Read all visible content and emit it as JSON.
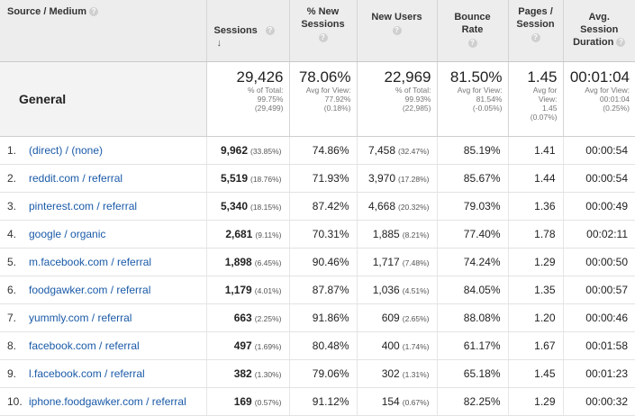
{
  "headers": {
    "source": "Source / Medium",
    "sessions": "Sessions",
    "new_sessions": "% New Sessions",
    "new_users": "New Users",
    "bounce_rate": "Bounce Rate",
    "pages_session": "Pages / Session",
    "avg_duration": "Avg. Session Duration",
    "help_glyph": "?",
    "sort_arrow": "↓"
  },
  "summary": {
    "label": "General",
    "sessions": {
      "value": "29,426",
      "l1": "% of Total:",
      "l2": "99.75%",
      "l3": "(29,499)"
    },
    "new_sessions": {
      "value": "78.06%",
      "l1": "Avg for View:",
      "l2": "77.92%",
      "l3": "(0.18%)"
    },
    "new_users": {
      "value": "22,969",
      "l1": "% of Total:",
      "l2": "99.93%",
      "l3": "(22,985)"
    },
    "bounce_rate": {
      "value": "81.50%",
      "l1": "Avg for View:",
      "l2": "81.54%",
      "l3": "(-0.05%)"
    },
    "pages_session": {
      "value": "1.45",
      "l1": "Avg for",
      "l2": "View:",
      "l3": "1.45",
      "l4": "(0.07%)"
    },
    "avg_duration": {
      "value": "00:01:04",
      "l1": "Avg for View:",
      "l2": "00:01:04",
      "l3": "(0.25%)"
    }
  },
  "rows": [
    {
      "idx": "1.",
      "source": "(direct) / (none)",
      "sessions": "9,962",
      "sessions_pct": "(33.85%)",
      "new_sessions": "74.86%",
      "new_users": "7,458",
      "new_users_pct": "(32.47%)",
      "bounce": "85.19%",
      "pages": "1.41",
      "duration": "00:00:54"
    },
    {
      "idx": "2.",
      "source": "reddit.com / referral",
      "sessions": "5,519",
      "sessions_pct": "(18.76%)",
      "new_sessions": "71.93%",
      "new_users": "3,970",
      "new_users_pct": "(17.28%)",
      "bounce": "85.67%",
      "pages": "1.44",
      "duration": "00:00:54"
    },
    {
      "idx": "3.",
      "source": "pinterest.com / referral",
      "sessions": "5,340",
      "sessions_pct": "(18.15%)",
      "new_sessions": "87.42%",
      "new_users": "4,668",
      "new_users_pct": "(20.32%)",
      "bounce": "79.03%",
      "pages": "1.36",
      "duration": "00:00:49"
    },
    {
      "idx": "4.",
      "source": "google / organic",
      "sessions": "2,681",
      "sessions_pct": "(9.11%)",
      "new_sessions": "70.31%",
      "new_users": "1,885",
      "new_users_pct": "(8.21%)",
      "bounce": "77.40%",
      "pages": "1.78",
      "duration": "00:02:11"
    },
    {
      "idx": "5.",
      "source": "m.facebook.com / referral",
      "sessions": "1,898",
      "sessions_pct": "(6.45%)",
      "new_sessions": "90.46%",
      "new_users": "1,717",
      "new_users_pct": "(7.48%)",
      "bounce": "74.24%",
      "pages": "1.29",
      "duration": "00:00:50"
    },
    {
      "idx": "6.",
      "source": "foodgawker.com / referral",
      "sessions": "1,179",
      "sessions_pct": "(4.01%)",
      "new_sessions": "87.87%",
      "new_users": "1,036",
      "new_users_pct": "(4.51%)",
      "bounce": "84.05%",
      "pages": "1.35",
      "duration": "00:00:57"
    },
    {
      "idx": "7.",
      "source": "yummly.com / referral",
      "sessions": "663",
      "sessions_pct": "(2.25%)",
      "new_sessions": "91.86%",
      "new_users": "609",
      "new_users_pct": "(2.65%)",
      "bounce": "88.08%",
      "pages": "1.20",
      "duration": "00:00:46"
    },
    {
      "idx": "8.",
      "source": "facebook.com / referral",
      "sessions": "497",
      "sessions_pct": "(1.69%)",
      "new_sessions": "80.48%",
      "new_users": "400",
      "new_users_pct": "(1.74%)",
      "bounce": "61.17%",
      "pages": "1.67",
      "duration": "00:01:58"
    },
    {
      "idx": "9.",
      "source": "l.facebook.com / referral",
      "sessions": "382",
      "sessions_pct": "(1.30%)",
      "new_sessions": "79.06%",
      "new_users": "302",
      "new_users_pct": "(1.31%)",
      "bounce": "65.18%",
      "pages": "1.45",
      "duration": "00:01:23"
    },
    {
      "idx": "10.",
      "source": "iphone.foodgawker.com / referral",
      "sessions": "169",
      "sessions_pct": "(0.57%)",
      "new_sessions": "91.12%",
      "new_users": "154",
      "new_users_pct": "(0.67%)",
      "bounce": "82.25%",
      "pages": "1.29",
      "duration": "00:00:32"
    }
  ]
}
